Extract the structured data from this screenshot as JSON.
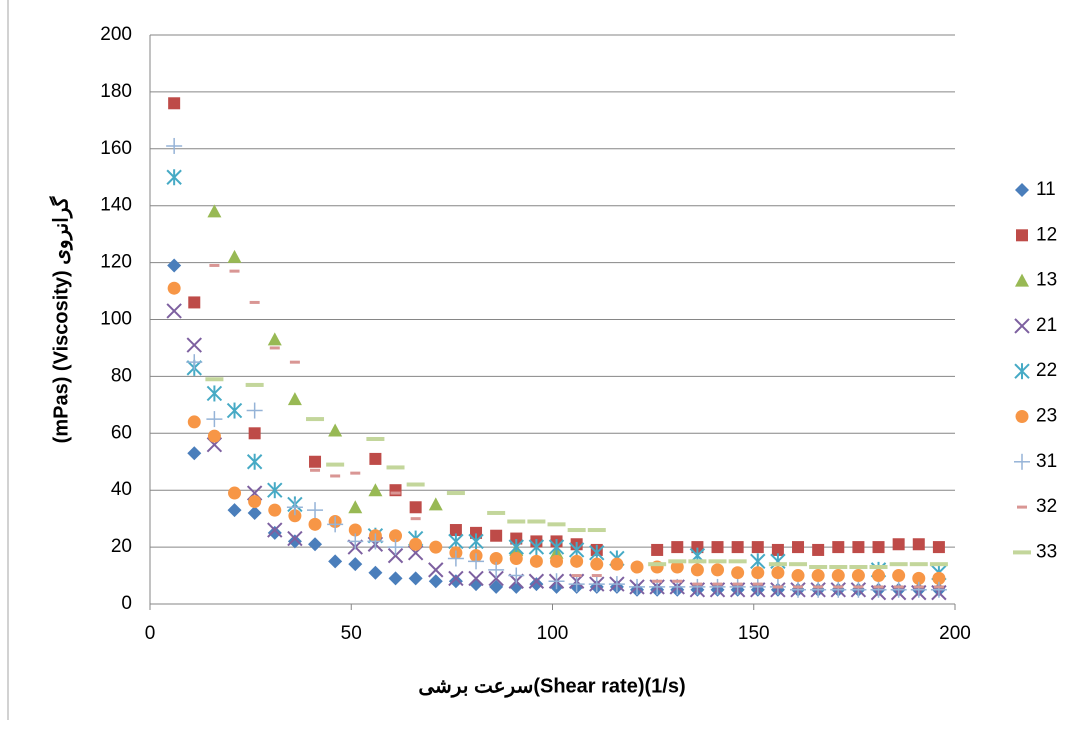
{
  "chart_data": {
    "type": "scatter",
    "y_label": "(mPas) (Viscosity) گرانروی",
    "x_label": "سرعت برشی(Shear rate)(1/s)",
    "x": [
      6,
      11,
      16,
      21,
      26,
      31,
      36,
      41,
      46,
      51,
      56,
      61,
      66,
      71,
      76,
      81,
      86,
      91,
      96,
      101,
      106,
      111,
      116,
      121,
      126,
      131,
      136,
      141,
      146,
      151,
      156,
      161,
      166,
      171,
      176,
      181,
      186,
      191,
      196
    ],
    "xlim": [
      0,
      200
    ],
    "xticks": [
      0,
      50,
      100,
      150,
      200
    ],
    "ylim": [
      0,
      200
    ],
    "yticks": [
      0,
      20,
      40,
      60,
      80,
      100,
      120,
      140,
      160,
      180,
      200
    ],
    "grid": true,
    "legend": "right",
    "series": [
      {
        "name": "11",
        "color": "#4a7ebb",
        "marker": "diamond",
        "values": [
          119,
          53,
          null,
          33,
          32,
          25,
          22,
          21,
          15,
          14,
          11,
          9,
          9,
          8,
          8,
          7,
          6,
          6,
          7,
          6,
          6,
          6,
          6,
          5,
          5,
          5,
          5,
          5,
          5,
          5,
          5,
          5,
          5,
          5,
          5,
          5,
          5,
          5,
          5
        ]
      },
      {
        "name": "12",
        "color": "#be4b48",
        "marker": "square",
        "values": [
          176,
          106,
          null,
          null,
          60,
          null,
          null,
          50,
          null,
          null,
          51,
          40,
          34,
          null,
          26,
          25,
          24,
          23,
          22,
          22,
          21,
          19,
          null,
          null,
          19,
          20,
          20,
          20,
          20,
          20,
          19,
          20,
          19,
          20,
          20,
          20,
          21,
          21,
          20
        ]
      },
      {
        "name": "13",
        "color": "#98b954",
        "marker": "triangle",
        "values": [
          null,
          null,
          138,
          122,
          null,
          93,
          72,
          null,
          61,
          34,
          40,
          null,
          null,
          35,
          null,
          null,
          null,
          19,
          null,
          18,
          null,
          null,
          null,
          null,
          null,
          null,
          null,
          null,
          null,
          null,
          null,
          null,
          null,
          null,
          null,
          null,
          null,
          null,
          null
        ]
      },
      {
        "name": "21",
        "color": "#7d60a0",
        "marker": "x",
        "values": [
          103,
          91,
          56,
          null,
          39,
          26,
          23,
          null,
          null,
          20,
          21,
          17,
          18,
          12,
          9,
          9,
          9,
          8,
          8,
          8,
          8,
          7,
          7,
          6,
          6,
          6,
          5,
          5,
          5,
          5,
          5,
          5,
          5,
          5,
          5,
          4,
          4,
          4,
          4
        ]
      },
      {
        "name": "22",
        "color": "#46aac5",
        "marker": "star",
        "values": [
          150,
          83,
          74,
          68,
          50,
          40,
          35,
          null,
          null,
          null,
          24,
          null,
          23,
          null,
          22,
          22,
          null,
          20,
          20,
          20,
          19,
          18,
          16,
          null,
          null,
          null,
          17,
          null,
          null,
          15,
          15,
          null,
          null,
          null,
          null,
          12,
          null,
          null,
          11
        ]
      },
      {
        "name": "23",
        "color": "#f79646",
        "marker": "circle",
        "values": [
          111,
          64,
          59,
          39,
          36,
          33,
          31,
          28,
          29,
          26,
          24,
          24,
          21,
          20,
          18,
          17,
          16,
          16,
          15,
          15,
          15,
          14,
          14,
          13,
          13,
          13,
          12,
          12,
          11,
          11,
          11,
          10,
          10,
          10,
          10,
          10,
          10,
          9,
          9
        ]
      },
      {
        "name": "31",
        "color": "#95b3d7",
        "marker": "plus",
        "values": [
          161,
          85,
          65,
          null,
          68,
          null,
          34,
          33,
          28,
          22,
          22,
          20,
          null,
          null,
          16,
          15,
          12,
          10,
          null,
          8,
          7,
          7,
          7,
          6,
          6,
          6,
          6,
          6,
          6,
          6,
          6,
          5,
          5,
          5,
          5,
          5,
          5,
          5,
          5
        ]
      },
      {
        "name": "32",
        "color": "#d99694",
        "marker": "dash",
        "values": [
          null,
          null,
          119,
          117,
          106,
          90,
          85,
          47,
          45,
          46,
          null,
          39,
          30,
          null,
          null,
          null,
          null,
          null,
          null,
          null,
          10,
          10,
          null,
          null,
          8,
          8,
          7,
          7,
          7,
          7,
          6,
          6,
          6,
          6,
          6,
          6,
          6,
          6,
          6
        ]
      },
      {
        "name": "33",
        "color": "#c3d69b",
        "marker": "longdash",
        "values": [
          null,
          null,
          79,
          null,
          77,
          null,
          null,
          65,
          49,
          null,
          58,
          48,
          42,
          null,
          39,
          null,
          32,
          29,
          29,
          28,
          26,
          26,
          null,
          null,
          14,
          15,
          15,
          15,
          15,
          null,
          14,
          14,
          13,
          13,
          13,
          13,
          14,
          14,
          14
        ]
      }
    ]
  }
}
